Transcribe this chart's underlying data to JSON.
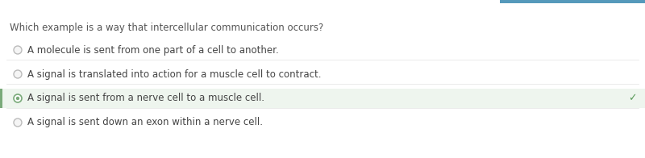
{
  "bg_color": "#ffffff",
  "question": "Which example is a way that intercellular communication occurs?",
  "question_color": "#555555",
  "question_fontsize": 8.5,
  "options": [
    "A molecule is sent from one part of a cell to another.",
    "A signal is translated into action for a muscle cell to contract.",
    "A signal is sent from a nerve cell to a muscle cell.",
    "A signal is sent down an exon within a nerve cell."
  ],
  "correct_index": 2,
  "option_fontsize": 8.5,
  "option_color": "#444444",
  "highlight_bg": "#eef5ee",
  "checkmark_color": "#5a9a5a",
  "radio_color": "#bbbbbb",
  "radio_selected_color": "#7aaa7a",
  "top_bar_color": "#5599bb",
  "left_border_color": "#7aaa7a",
  "separator_color": "#e8e8e8"
}
